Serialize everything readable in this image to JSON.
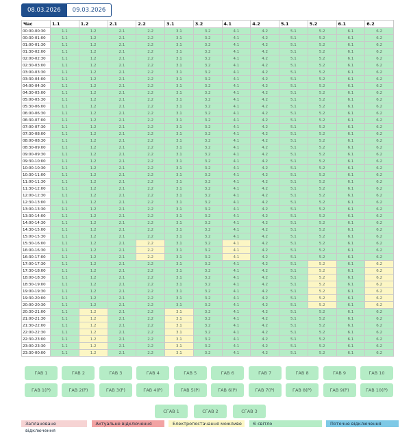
{
  "tabs": [
    "08.03.2026",
    "09.03.2026"
  ],
  "schedule": {
    "headers": [
      "Час",
      "1.1",
      "1.2",
      "2.1",
      "2.2",
      "3.1",
      "3.2",
      "4.1",
      "4.2",
      "5.1",
      "5.2",
      "6.1",
      "6.2"
    ],
    "cell_labels": [
      "1.1",
      "1.2",
      "2.1",
      "2.2",
      "3.1",
      "3.2",
      "4.1",
      "4.2",
      "5.1",
      "5.2",
      "6.1",
      "6.2"
    ],
    "times": [
      "00:00-00:30",
      "00:30-01:00",
      "01:00-01:30",
      "01:30-02:00",
      "02:00-02:30",
      "02:30-03:00",
      "03:00-03:30",
      "03:30-04:00",
      "04:00-04:30",
      "04:30-05:00",
      "05:00-05:30",
      "05:30-06:00",
      "06:00-06:30",
      "06:30-07:00",
      "07:00-07:30",
      "07:30-08:00",
      "08:00-08:30",
      "08:30-09:00",
      "09:00-09:30",
      "09:30-10:00",
      "10:00-10:30",
      "10:30-11:00",
      "11:00-11:30",
      "11:30-12:00",
      "12:00-12:30",
      "12:30-13:00",
      "13:00-13:30",
      "13:30-14:00",
      "14:00-14:30",
      "14:30-15:00",
      "15:00-15:30",
      "15:30-16:00",
      "16:00-16:30",
      "16:30-17:00",
      "17:00-17:30",
      "17:30-18:00",
      "18:00-18:30",
      "18:30-19:00",
      "19:00-19:30",
      "19:30-20:00",
      "20:00-20:30",
      "20:30-21:00",
      "21:00-21:30",
      "21:30-22:00",
      "22:00-22:30",
      "22:30-23:00",
      "23:00-23:30",
      "23:30-00:00"
    ],
    "possible_outage_cells": {
      "2.2": [
        31,
        32,
        33
      ],
      "4.1": [
        31,
        32,
        33
      ],
      "5.2": [
        34,
        35,
        36,
        37,
        38,
        39,
        40
      ],
      "6.2": [
        34,
        35,
        36,
        37,
        38,
        39,
        40
      ],
      "1.2": [
        41,
        42,
        43,
        44,
        45,
        46,
        47
      ],
      "3.1": [
        41,
        42,
        43,
        44,
        45,
        46,
        47
      ]
    },
    "colors": {
      "has_power": "#b5ecc6",
      "possible_outage": "#fcf6c4"
    }
  },
  "gav_buttons": [
    "ГАВ 1",
    "ГАВ 2",
    "ГАВ 3",
    "ГАВ 4",
    "ГАВ 5",
    "ГАВ 6",
    "ГАВ 7",
    "ГАВ 8",
    "ГАВ 9",
    "ГАВ 10"
  ],
  "gav_p_buttons": [
    "ГАВ 1(Р)",
    "ГАВ 2(Р)",
    "ГАВ 3(Р)",
    "ГАВ 4(Р)",
    "ГАВ 5(Р)",
    "ГАВ 6(Р)",
    "ГАВ 7(Р)",
    "ГАВ 8(Р)",
    "ГАВ 9(Р)",
    "ГАВ 10(Р)"
  ],
  "sgav_buttons": [
    "СГАВ 1",
    "СГАВ 2",
    "СГАВ 3"
  ],
  "legend": [
    {
      "label": "Заплановане відключення",
      "color": "#f6d3d3"
    },
    {
      "label": "Актуальне відключення",
      "color": "#f2a3a3"
    },
    {
      "label": "Електропостачання можливе",
      "color": "#fcf6c4"
    },
    {
      "label": "Є світло",
      "color": "#b5ecc6"
    },
    {
      "label": "Поточне відключення",
      "color": "#7ec9e6"
    }
  ]
}
